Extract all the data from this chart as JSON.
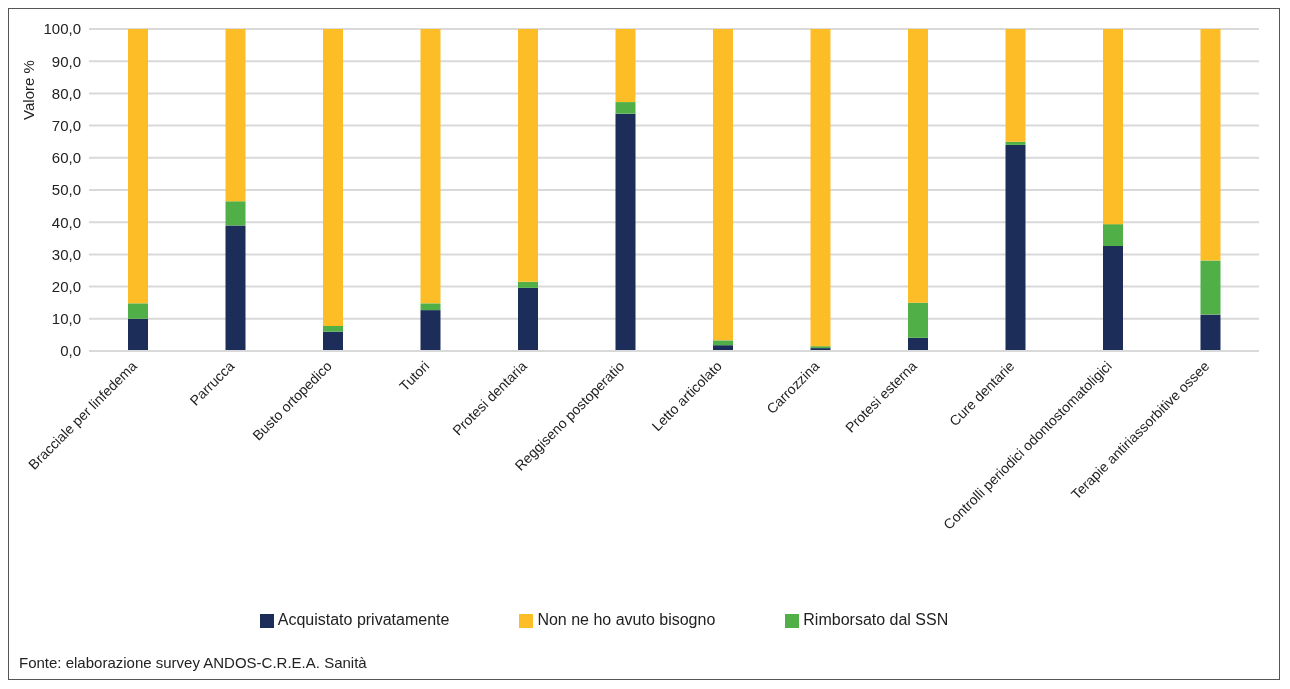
{
  "chart_data": {
    "type": "bar",
    "stacked": true,
    "ylabel": "Valore %",
    "categories": [
      "Bracciale per linfedema",
      "Parrucca",
      "Busto ortopedico",
      "Tutori",
      "Protesi dentaria",
      "Reggiseno postoperatio",
      "Letto articolato",
      "Carrozzina",
      "Protesi esterna",
      "Cure dentarie",
      "Controlli periodici odontostomatoligici",
      "Terapie antiriassorbitive ossee"
    ],
    "series": [
      {
        "name": "Acquistato privatamente",
        "color": "#1d2d5a",
        "values": [
          10.0,
          39.0,
          6.0,
          12.7,
          19.6,
          73.7,
          1.8,
          0.9,
          4.1,
          64.0,
          32.6,
          11.3
        ]
      },
      {
        "name": "Rimborsato dal SSN",
        "color": "#50b047",
        "values": [
          4.8,
          7.5,
          1.8,
          2.1,
          1.9,
          3.6,
          1.5,
          0.6,
          10.9,
          1.0,
          6.8,
          16.8
        ]
      },
      {
        "name": "Non ne ho avuto bisogno",
        "color": "#fdbd26",
        "values": [
          85.2,
          53.5,
          92.2,
          85.2,
          78.5,
          22.7,
          96.7,
          98.5,
          85.0,
          35.0,
          60.6,
          71.9
        ]
      }
    ],
    "ylim": [
      0,
      100
    ],
    "yticks": [
      {
        "value": 0,
        "label": "0,0"
      },
      {
        "value": 10,
        "label": "10,0"
      },
      {
        "value": 20,
        "label": "20,0"
      },
      {
        "value": 30,
        "label": "30,0"
      },
      {
        "value": 40,
        "label": "40,0"
      },
      {
        "value": 50,
        "label": "50,0"
      },
      {
        "value": 60,
        "label": "60,0"
      },
      {
        "value": 70,
        "label": "70,0"
      },
      {
        "value": 80,
        "label": "80,0"
      },
      {
        "value": 90,
        "label": "90,0"
      },
      {
        "value": 100,
        "label": "100,0"
      }
    ],
    "grid": "y",
    "legend": "bottom",
    "annotations": [
      "Fonte: elaborazione survey ANDOS-C.R.E.A. Sanità"
    ]
  }
}
